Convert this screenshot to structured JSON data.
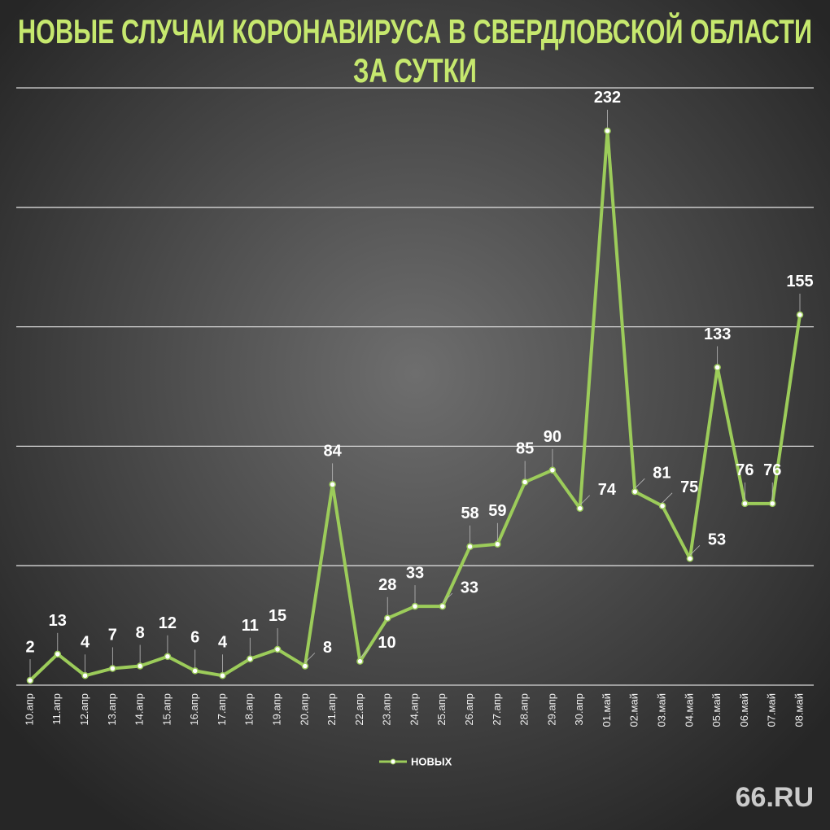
{
  "chart_data": {
    "type": "line",
    "title": [
      "НОВЫЕ СЛУЧАИ КОРОНАВИРУСА В СВЕРДЛОВСКОЙ ОБЛАСТИ",
      "ЗА СУТКИ"
    ],
    "categories": [
      "10.апр",
      "11.апр",
      "12.апр",
      "13.апр",
      "14.апр",
      "15.апр",
      "16.апр",
      "17.апр",
      "18.апр",
      "19.апр",
      "20.апр",
      "21.апр",
      "22.апр",
      "23.апр",
      "24.апр",
      "25.апр",
      "26.апр",
      "27.апр",
      "28.апр",
      "29.апр",
      "30.апр",
      "01.май",
      "02.май",
      "03.май",
      "04.май",
      "05.май",
      "06.май",
      "07.май",
      "08.май"
    ],
    "series": [
      {
        "name": "НОВЫХ",
        "color": "#9ccc5a",
        "values": [
          2,
          13,
          4,
          7,
          8,
          12,
          6,
          4,
          11,
          15,
          8,
          84,
          10,
          28,
          33,
          33,
          58,
          59,
          85,
          90,
          74,
          232,
          81,
          75,
          53,
          133,
          76,
          76,
          155
        ]
      }
    ],
    "ylim": [
      0,
      250
    ],
    "yticks": [
      0,
      50,
      100,
      150,
      200,
      250
    ],
    "grid": true,
    "legend": "bottom",
    "credit": "66.RU"
  }
}
